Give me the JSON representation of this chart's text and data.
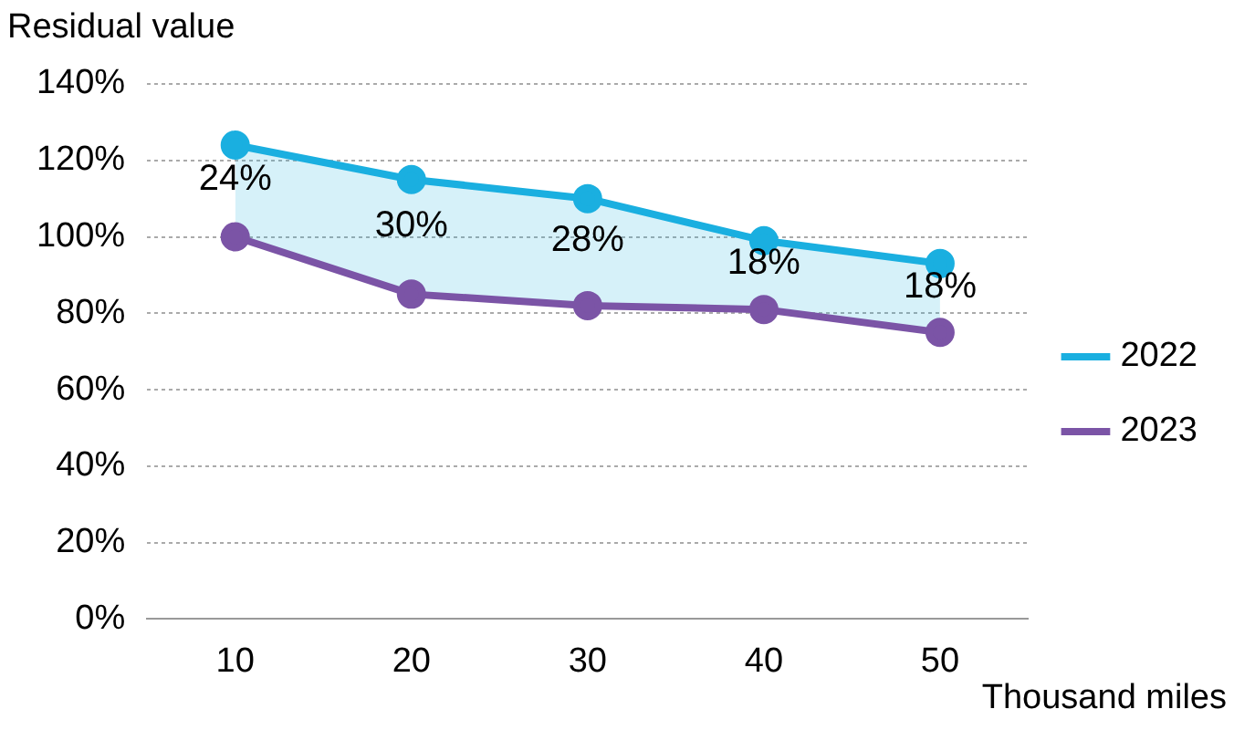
{
  "chart_data": {
    "type": "line",
    "ylabel": "Residual value",
    "xlabel": "Thousand miles",
    "categories": [
      "10",
      "20",
      "30",
      "40",
      "50"
    ],
    "series": [
      {
        "name": "2022",
        "color": "#1aafe0",
        "values": [
          124,
          115,
          110,
          99,
          93
        ],
        "lower": [
          100,
          85,
          82,
          81,
          75
        ],
        "upper": [
          124,
          115,
          110,
          99,
          93
        ]
      },
      {
        "name": "2023",
        "color": "#7b54a6",
        "values": [
          100,
          85,
          82,
          81,
          75
        ]
      }
    ],
    "ylim": [
      0,
      140
    ],
    "yticks": [
      {
        "value": 0,
        "label": "0%"
      },
      {
        "value": 20,
        "label": "20%"
      },
      {
        "value": 40,
        "label": "40%"
      },
      {
        "value": 60,
        "label": "60%"
      },
      {
        "value": 80,
        "label": "80%"
      },
      {
        "value": 100,
        "label": "100%"
      },
      {
        "value": 120,
        "label": "120%"
      },
      {
        "value": 140,
        "label": "140%"
      }
    ],
    "grid": "y",
    "legend": "right",
    "marker": "circle",
    "line_style": "solid",
    "annotations": [
      "24%",
      "30%",
      "28%",
      "18%",
      "18%"
    ]
  }
}
